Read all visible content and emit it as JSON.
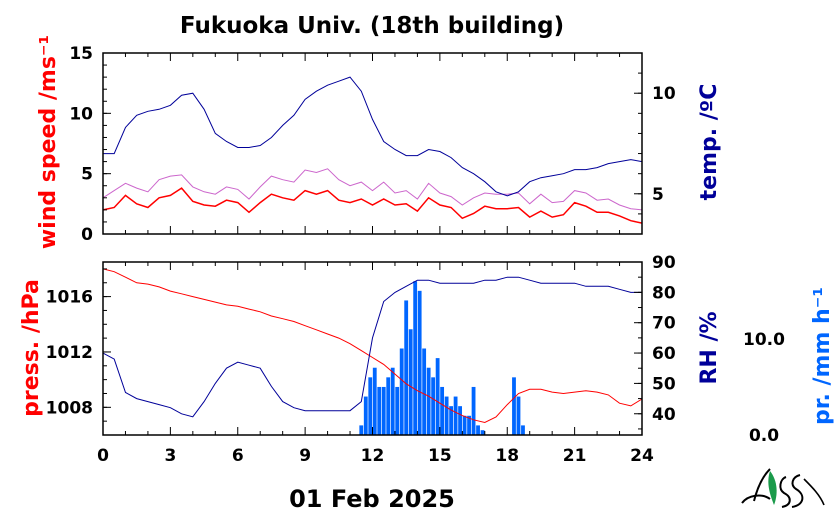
{
  "title": "Fukuoka Univ. (18th building)",
  "date_label": "01 Feb 2025",
  "colors": {
    "wind": "#ff0000",
    "wind_gust": "#cc66cc",
    "temp": "#000099",
    "pressure": "#ff0000",
    "rh": "#000099",
    "precip": "#0066ff",
    "axis": "#000000"
  },
  "chart_data": [
    {
      "type": "line",
      "title": "Fukuoka Univ. (18th building)",
      "xlabel": "",
      "x_ticks": [
        "0",
        "3",
        "6",
        "9",
        "12",
        "15",
        "18",
        "21",
        "24"
      ],
      "xlim": [
        0,
        24
      ],
      "ylabel": "wind speed /ms⁻¹",
      "ylim": [
        0,
        15
      ],
      "y_ticks": [
        "0",
        "5",
        "10",
        "15"
      ],
      "y2label": "temp. /ºC",
      "y2lim": [
        3,
        12
      ],
      "y2_ticks": [
        "5",
        "10"
      ],
      "grid": false,
      "series": [
        {
          "axis": "left",
          "role": "wind-gust",
          "x": [
            0,
            0.5,
            1,
            1.5,
            2,
            2.5,
            3,
            3.5,
            4,
            4.5,
            5,
            5.5,
            6,
            6.5,
            7,
            7.5,
            8,
            8.5,
            9,
            9.5,
            10,
            10.5,
            11,
            11.5,
            12,
            12.5,
            13,
            13.5,
            14,
            14.5,
            15,
            15.5,
            16,
            16.5,
            17,
            17.5,
            18,
            18.5,
            19,
            19.5,
            20,
            20.5,
            21,
            21.5,
            22,
            22.5,
            23,
            23.5,
            24
          ],
          "values": [
            3.0,
            3.6,
            4.2,
            3.8,
            3.5,
            4.5,
            4.8,
            4.9,
            3.9,
            3.5,
            3.3,
            3.9,
            3.7,
            2.9,
            3.9,
            4.8,
            4.5,
            4.3,
            5.3,
            5.1,
            5.4,
            4.5,
            4.0,
            4.3,
            3.6,
            4.3,
            3.4,
            3.6,
            2.9,
            4.2,
            3.4,
            3.1,
            2.4,
            3.0,
            3.4,
            3.3,
            3.3,
            3.4,
            2.5,
            3.3,
            2.6,
            2.7,
            3.6,
            3.4,
            2.8,
            2.9,
            2.4,
            2.1,
            2.0
          ]
        },
        {
          "axis": "left",
          "role": "wind-mean",
          "x": [
            0,
            0.5,
            1,
            1.5,
            2,
            2.5,
            3,
            3.5,
            4,
            4.5,
            5,
            5.5,
            6,
            6.5,
            7,
            7.5,
            8,
            8.5,
            9,
            9.5,
            10,
            10.5,
            11,
            11.5,
            12,
            12.5,
            13,
            13.5,
            14,
            14.5,
            15,
            15.5,
            16,
            16.5,
            17,
            17.5,
            18,
            18.5,
            19,
            19.5,
            20,
            20.5,
            21,
            21.5,
            22,
            22.5,
            23,
            23.5,
            24
          ],
          "values": [
            2.0,
            2.2,
            3.2,
            2.5,
            2.2,
            3.0,
            3.2,
            3.8,
            2.7,
            2.4,
            2.3,
            2.8,
            2.6,
            1.8,
            2.6,
            3.3,
            3.0,
            2.8,
            3.6,
            3.3,
            3.6,
            2.8,
            2.6,
            2.9,
            2.4,
            2.9,
            2.4,
            2.5,
            1.9,
            3.0,
            2.4,
            2.2,
            1.3,
            1.7,
            2.3,
            2.1,
            2.1,
            2.2,
            1.4,
            1.9,
            1.4,
            1.6,
            2.6,
            2.3,
            1.8,
            1.8,
            1.5,
            1.1,
            0.9
          ]
        },
        {
          "axis": "right",
          "role": "temperature",
          "x": [
            0,
            0.5,
            1,
            1.5,
            2,
            2.5,
            3,
            3.5,
            4,
            4.5,
            5,
            5.5,
            6,
            6.5,
            7,
            7.5,
            8,
            8.5,
            9,
            9.5,
            10,
            10.5,
            11,
            11.5,
            12,
            12.5,
            13,
            13.5,
            14,
            14.5,
            15,
            15.5,
            16,
            16.5,
            17,
            17.5,
            18,
            18.5,
            19,
            19.5,
            20,
            20.5,
            21,
            21.5,
            22,
            22.5,
            23,
            23.5,
            24
          ],
          "values": [
            7.0,
            7.0,
            8.3,
            8.9,
            9.1,
            9.2,
            9.4,
            9.9,
            10.0,
            9.2,
            8.0,
            7.6,
            7.3,
            7.3,
            7.4,
            7.8,
            8.4,
            8.9,
            9.7,
            10.1,
            10.4,
            10.6,
            10.8,
            10.1,
            8.7,
            7.6,
            7.2,
            6.9,
            6.9,
            7.2,
            7.1,
            6.8,
            6.3,
            6.0,
            5.6,
            5.1,
            4.9,
            5.1,
            5.6,
            5.8,
            5.9,
            6.0,
            6.2,
            6.2,
            6.3,
            6.5,
            6.6,
            6.7,
            6.6
          ]
        }
      ]
    },
    {
      "type": "line",
      "xlabel": "01 Feb 2025",
      "x_ticks": [
        "0",
        "3",
        "6",
        "9",
        "12",
        "15",
        "18",
        "21",
        "24"
      ],
      "xlim": [
        0,
        24
      ],
      "ylabel": "press. /hPa",
      "ylim": [
        1006,
        1018.5
      ],
      "y_ticks": [
        "1008",
        "1012",
        "1016"
      ],
      "y2label": "RH /%",
      "y2lim": [
        33,
        90
      ],
      "y2_ticks": [
        "40",
        "50",
        "60",
        "70",
        "80",
        "90"
      ],
      "y3label": "pr. /mm h⁻¹",
      "y3lim": [
        0,
        18
      ],
      "y3_ticks": [
        "0.0",
        "10.0"
      ],
      "grid": false,
      "series": [
        {
          "axis": "left",
          "role": "pressure",
          "x": [
            0,
            0.5,
            1,
            1.5,
            2,
            2.5,
            3,
            3.5,
            4,
            4.5,
            5,
            5.5,
            6,
            6.5,
            7,
            7.5,
            8,
            8.5,
            9,
            9.5,
            10,
            10.5,
            11,
            11.5,
            12,
            12.5,
            13,
            13.5,
            14,
            14.5,
            15,
            15.5,
            16,
            16.5,
            17,
            17.5,
            18,
            18.5,
            19,
            19.5,
            20,
            20.5,
            21,
            21.5,
            22,
            22.5,
            23,
            23.5,
            24
          ],
          "values": [
            1018.0,
            1017.8,
            1017.4,
            1017.0,
            1016.9,
            1016.7,
            1016.4,
            1016.2,
            1016.0,
            1015.8,
            1015.6,
            1015.4,
            1015.3,
            1015.1,
            1014.9,
            1014.6,
            1014.4,
            1014.2,
            1013.9,
            1013.6,
            1013.3,
            1013.0,
            1012.6,
            1012.1,
            1011.6,
            1011.1,
            1010.4,
            1009.7,
            1009.2,
            1008.8,
            1008.3,
            1007.8,
            1007.4,
            1007.1,
            1006.9,
            1007.3,
            1008.2,
            1009.0,
            1009.3,
            1009.3,
            1009.1,
            1009.0,
            1009.1,
            1009.2,
            1009.1,
            1008.9,
            1008.3,
            1008.1,
            1008.6
          ]
        },
        {
          "axis": "right",
          "role": "relative-humidity",
          "x": [
            0,
            0.5,
            1,
            1.5,
            2,
            2.5,
            3,
            3.5,
            4,
            4.5,
            5,
            5.5,
            6,
            6.5,
            7,
            7.5,
            8,
            8.5,
            9,
            9.5,
            10,
            10.5,
            11,
            11.5,
            12,
            12.5,
            13,
            13.5,
            14,
            14.5,
            15,
            15.5,
            16,
            16.5,
            17,
            17.5,
            18,
            18.5,
            19,
            19.5,
            20,
            20.5,
            21,
            21.5,
            22,
            22.5,
            23,
            23.5,
            24
          ],
          "values": [
            60.0,
            58.0,
            47.0,
            45.0,
            44.0,
            43.0,
            42.0,
            40.0,
            39.0,
            44.0,
            50.0,
            55.0,
            57.0,
            56.0,
            55.0,
            49.0,
            44.0,
            42.0,
            41.0,
            41.0,
            41.0,
            41.0,
            41.0,
            44.0,
            65.0,
            77.0,
            80.0,
            82.0,
            84.0,
            84.0,
            83.0,
            83.0,
            83.0,
            83.0,
            84.0,
            84.0,
            85.0,
            85.0,
            84.0,
            83.0,
            83.0,
            83.0,
            83.0,
            82.0,
            82.0,
            82.0,
            81.0,
            80.0,
            80.0
          ]
        },
        {
          "axis": "right2",
          "role": "precipitation",
          "style": "bars",
          "x": [
            11.5,
            11.7,
            11.9,
            12.1,
            12.3,
            12.5,
            12.7,
            12.9,
            13.1,
            13.3,
            13.5,
            13.7,
            13.9,
            14.1,
            14.3,
            14.5,
            14.7,
            14.9,
            15.1,
            15.3,
            15.5,
            15.7,
            15.9,
            16.1,
            16.3,
            16.5,
            16.7,
            16.9,
            17.1,
            17.3,
            17.5,
            17.7,
            17.9,
            18.1,
            18.3,
            18.5,
            18.7
          ],
          "values": [
            1.0,
            4.0,
            6.0,
            7.0,
            5.0,
            5.0,
            6.0,
            7.0,
            5.0,
            9.0,
            14.0,
            11.0,
            16.0,
            15.0,
            9.0,
            7.0,
            6.0,
            8.0,
            5.0,
            4.0,
            3.0,
            4.0,
            3.0,
            2.0,
            2.0,
            5.0,
            1.0,
            0.5,
            0.0,
            0.0,
            0.0,
            0.0,
            0.0,
            0.0,
            6.0,
            4.0,
            1.0
          ]
        }
      ]
    }
  ]
}
